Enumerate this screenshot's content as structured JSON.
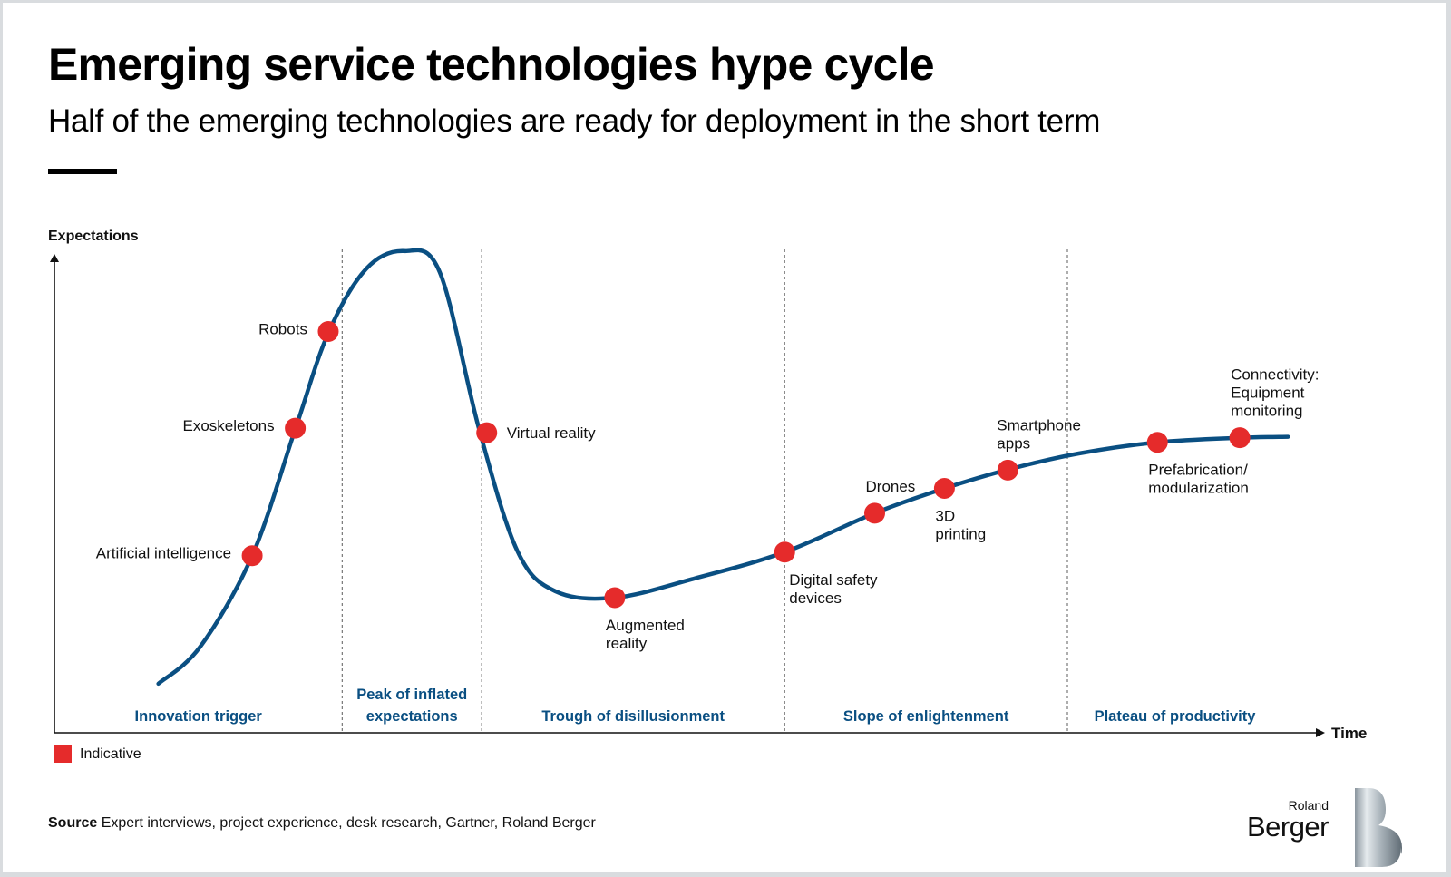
{
  "header": {
    "title": "Emerging service technologies hype cycle",
    "subtitle": "Half of the emerging technologies are ready for deployment in the short term"
  },
  "legend": {
    "label": "Indicative",
    "color": "#e52b2b"
  },
  "footer": {
    "source_label": "Source",
    "source_text": " Expert interviews, project experience, desk research, Gartner, Roland Berger"
  },
  "brand": {
    "line1": "Roland",
    "line2": "Berger"
  },
  "colors": {
    "curve": "#0a4f82",
    "marker": "#e52b2b",
    "phase_label": "#0a4f82",
    "axis": "#111111",
    "divider": "#777777"
  },
  "chart_data": {
    "type": "line",
    "title": "Emerging service technologies hype cycle",
    "xlabel": "Time",
    "ylabel": "Expectations",
    "xlim": [
      0,
      100
    ],
    "ylim": [
      0,
      100
    ],
    "grid": false,
    "legend_position": "bottom-left",
    "phases": [
      {
        "name": "Innovation trigger",
        "lines": [
          "Innovation trigger"
        ],
        "x_start": 0,
        "x_end": 22.7
      },
      {
        "name": "Peak of inflated expectations",
        "lines": [
          "Peak of inflated",
          "expectations"
        ],
        "x_start": 22.7,
        "x_end": 33.7
      },
      {
        "name": "Trough of disillusionment",
        "lines": [
          "Trough of disillusionment"
        ],
        "x_start": 33.7,
        "x_end": 57.6
      },
      {
        "name": "Slope of enlightenment",
        "lines": [
          "Slope of enlightenment"
        ],
        "x_start": 57.6,
        "x_end": 79.9
      },
      {
        "name": "Plateau of productivity",
        "lines": [
          "Plateau of productivity"
        ],
        "x_start": 79.9,
        "x_end": 100
      }
    ],
    "curve": [
      [
        8.2,
        9.7
      ],
      [
        11.5,
        17
      ],
      [
        15.6,
        35
      ],
      [
        19.0,
        60
      ],
      [
        21.6,
        79
      ],
      [
        24.6,
        91.7
      ],
      [
        27.6,
        95.2
      ],
      [
        30.4,
        91
      ],
      [
        33.5,
        60
      ],
      [
        36.5,
        36
      ],
      [
        39.5,
        28
      ],
      [
        44.2,
        26.7
      ],
      [
        50.5,
        30.5
      ],
      [
        57.6,
        35.7
      ],
      [
        64.7,
        43.4
      ],
      [
        70.2,
        48.3
      ],
      [
        75.2,
        52
      ],
      [
        80.8,
        55.2
      ],
      [
        87.0,
        57.4
      ],
      [
        93.5,
        58.3
      ],
      [
        97.3,
        58.5
      ]
    ],
    "points": [
      {
        "label": "Artificial intelligence",
        "lines": [
          "Artificial intelligence"
        ],
        "phase": "Innovation trigger",
        "x": 15.6,
        "y": 35.0,
        "label_pos": "left"
      },
      {
        "label": "Exoskeletons",
        "lines": [
          "Exoskeletons"
        ],
        "phase": "Innovation trigger",
        "x": 19.0,
        "y": 60.2,
        "label_pos": "left"
      },
      {
        "label": "Robots",
        "lines": [
          "Robots"
        ],
        "phase": "Innovation trigger",
        "x": 21.6,
        "y": 79.3,
        "label_pos": "left"
      },
      {
        "label": "Virtual reality",
        "lines": [
          "Virtual reality"
        ],
        "phase": "Trough of disillusionment",
        "x": 34.1,
        "y": 59.3,
        "label_pos": "right"
      },
      {
        "label": "Augmented reality",
        "lines": [
          "Augmented",
          "reality"
        ],
        "phase": "Trough of disillusionment",
        "x": 44.2,
        "y": 26.7,
        "label_pos": "below"
      },
      {
        "label": "Digital safety devices",
        "lines": [
          "Digital safety",
          "devices"
        ],
        "phase": "Slope of enlightenment",
        "x": 57.6,
        "y": 35.7,
        "label_pos": "below"
      },
      {
        "label": "Drones",
        "lines": [
          "Drones"
        ],
        "phase": "Slope of enlightenment",
        "x": 64.7,
        "y": 43.4,
        "label_pos": "above"
      },
      {
        "label": "3D printing",
        "lines": [
          "3D",
          "printing"
        ],
        "phase": "Slope of enlightenment",
        "x": 70.2,
        "y": 48.3,
        "label_pos": "below"
      },
      {
        "label": "Smartphone apps",
        "lines": [
          "Smartphone",
          "apps"
        ],
        "phase": "Slope of enlightenment",
        "x": 75.2,
        "y": 51.9,
        "label_pos": "above"
      },
      {
        "label": "Prefabrication/ modularization",
        "lines": [
          "Prefabrication/",
          "modularization"
        ],
        "phase": "Plateau of productivity",
        "x": 87.0,
        "y": 57.4,
        "label_pos": "below"
      },
      {
        "label": "Connectivity: Equipment monitoring",
        "lines": [
          "Connectivity:",
          "Equipment",
          "monitoring"
        ],
        "phase": "Plateau of productivity",
        "x": 93.5,
        "y": 58.3,
        "label_pos": "above"
      }
    ]
  }
}
